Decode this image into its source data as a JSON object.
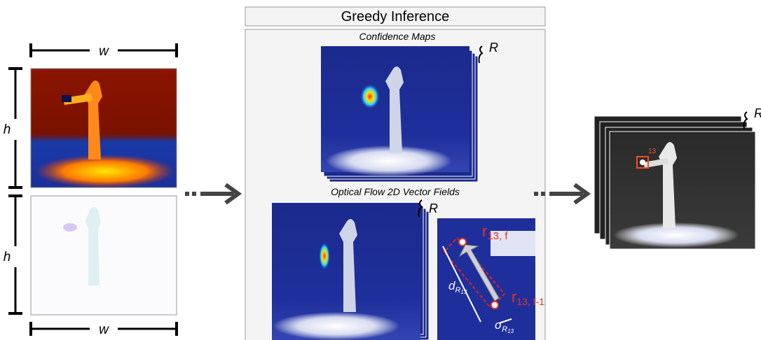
{
  "input": {
    "top_width": "w",
    "bottom_width": "w",
    "top_height": "h",
    "bottom_height": "h"
  },
  "inference": {
    "title": "Greedy Inference",
    "confidence": {
      "title": "Confidence Maps",
      "stack_label": "R"
    },
    "flow": {
      "title": "Optical Flow 2D Vector Fields",
      "stack_label": "R"
    },
    "detail": {
      "r_current": {
        "base": "r",
        "sub": "13, f"
      },
      "r_previous": {
        "base": "r",
        "sub": "13, f-1"
      },
      "distance": {
        "base": "d",
        "sub": "R",
        "subsub": "13"
      },
      "sigma": {
        "base": "σ",
        "sub": "R",
        "subsub": "13"
      }
    }
  },
  "output": {
    "marker_label": "13",
    "stack_label": "R"
  }
}
